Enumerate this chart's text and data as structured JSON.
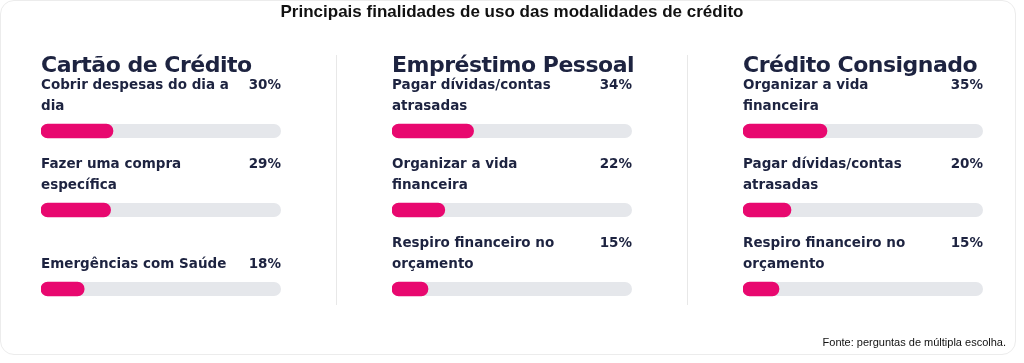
{
  "chart_data": [
    {
      "type": "other",
      "title": "Principais finalidades de uso das modalidades de crédito",
      "annotations": [
        "Fonte: perguntas de múltipla escolha."
      ]
    },
    {
      "type": "bar",
      "orientation": "horizontal",
      "title": "Cartão de Crédito",
      "categories": [
        "Cobrir despesas do dia a dia",
        "Fazer uma compra específica",
        "Emergências com Saúde"
      ],
      "values": [
        30,
        29,
        18
      ],
      "value_labels": [
        "30%",
        "29%",
        "18%"
      ],
      "color": "#e8086f",
      "xlim": [
        0,
        100
      ],
      "tick_labels": "y"
    },
    {
      "type": "bar",
      "orientation": "horizontal",
      "title": "Empréstimo Pessoal",
      "categories": [
        "Pagar dívidas/contas atrasadas",
        "Organizar a vida financeira",
        "Respiro financeiro no orçamento"
      ],
      "values": [
        34,
        22,
        15
      ],
      "value_labels": [
        "34%",
        "22%",
        "15%"
      ],
      "color": "#e8086f",
      "xlim": [
        0,
        100
      ],
      "tick_labels": "y"
    },
    {
      "type": "bar",
      "orientation": "horizontal",
      "title": "Crédito Consignado",
      "categories": [
        "Organizar a vida financeira",
        "Pagar dívidas/contas atrasadas",
        "Respiro financeiro no orçamento"
      ],
      "values": [
        35,
        20,
        15
      ],
      "value_labels": [
        "35%",
        "20%",
        "15%"
      ],
      "color": "#e8086f",
      "xlim": [
        0,
        100
      ],
      "tick_labels": "y"
    }
  ]
}
